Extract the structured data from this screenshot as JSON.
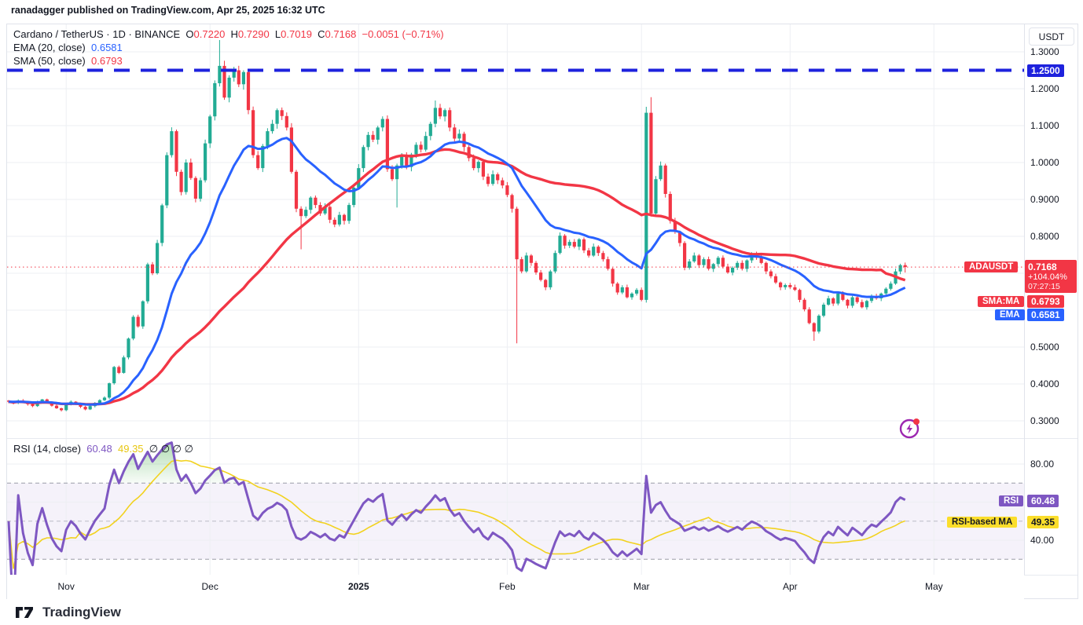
{
  "header": {
    "published_line": "ranadagger published on TradingView.com, Apr 25, 2025 16:32 UTC"
  },
  "legend": {
    "symbol": "Cardano / TetherUS · 1D · BINANCE",
    "o_label": "O",
    "o_value": "0.7220",
    "h_label": "H",
    "h_value": "0.7290",
    "l_label": "L",
    "l_value": "0.7019",
    "c_label": "C",
    "c_value": "0.7168",
    "change": "−0.0051 (−0.71%)",
    "ema_label": "EMA (20, close)",
    "ema_value": "0.6581",
    "sma_label": "SMA (50, close)",
    "sma_value": "0.6793"
  },
  "rsi_legend": {
    "label": "RSI (14, close)",
    "rsi_value": "60.48",
    "ma_value": "49.35",
    "empties": "∅ ∅ ∅ ∅"
  },
  "price_axis": {
    "currency": "USDT",
    "labels": [
      {
        "text": "1.3000",
        "price": 1.3
      },
      {
        "text": "1.2000",
        "price": 1.2
      },
      {
        "text": "1.1000",
        "price": 1.1
      },
      {
        "text": "1.0000",
        "price": 1.0
      },
      {
        "text": "0.9000",
        "price": 0.9
      },
      {
        "text": "0.8000",
        "price": 0.8
      },
      {
        "text": "0.5000",
        "price": 0.5
      },
      {
        "text": "0.4000",
        "price": 0.4
      },
      {
        "text": "0.3000",
        "price": 0.3
      }
    ],
    "level_badge": {
      "text": "1.2500",
      "price": 1.25,
      "color": "#1e22dd"
    },
    "last_badge": {
      "symbol": "ADAUSDT",
      "price": "0.7168",
      "change_pct": "+104.04%",
      "countdown": "07:27:15",
      "color": "#f23645"
    },
    "sma_badge": {
      "label": "SMA:MA",
      "value": "0.6793",
      "color": "#f23645"
    },
    "ema_badge": {
      "label": "EMA",
      "value": "0.6581",
      "color": "#2962ff"
    }
  },
  "rsi_axis": {
    "labels": [
      {
        "text": "80.00",
        "value": 80
      },
      {
        "text": "40.00",
        "value": 40
      }
    ],
    "rsi_badge": {
      "label": "RSI",
      "value": "60.48",
      "color": "#7e57c2",
      "rsi": 60.48
    },
    "ma_badge": {
      "label": "RSI-based MA",
      "value": "49.35",
      "color": "#fbde2b",
      "text_color": "#131722",
      "rsi": 49.35
    }
  },
  "time_axis": {
    "labels": [
      {
        "text": "Nov",
        "index": 12
      },
      {
        "text": "Dec",
        "index": 42
      },
      {
        "text": "2025",
        "index": 73,
        "bold": true
      },
      {
        "text": "Feb",
        "index": 104
      },
      {
        "text": "Mar",
        "index": 132
      },
      {
        "text": "Apr",
        "index": 163
      },
      {
        "text": "May",
        "index": 193
      }
    ]
  },
  "footer": {
    "brand": "TradingView"
  },
  "chart_data": {
    "type": "candlestick",
    "symbol": "ADAUSDT",
    "exchange": "BINANCE",
    "interval": "1D",
    "title": "Cardano / TetherUS daily with EMA(20), SMA(50) and RSI(14)",
    "first_open": 0.355,
    "closes": [
      0.352,
      0.348,
      0.355,
      0.35,
      0.345,
      0.34,
      0.351,
      0.358,
      0.35,
      0.341,
      0.334,
      0.329,
      0.344,
      0.352,
      0.347,
      0.338,
      0.331,
      0.34,
      0.349,
      0.356,
      0.363,
      0.402,
      0.446,
      0.43,
      0.472,
      0.523,
      0.582,
      0.556,
      0.624,
      0.724,
      0.7,
      0.782,
      0.884,
      1.02,
      1.085,
      0.975,
      0.92,
      1.0,
      0.958,
      0.902,
      0.952,
      1.052,
      1.125,
      1.215,
      1.262,
      1.176,
      1.23,
      1.25,
      1.212,
      1.245,
      1.142,
      1.02,
      0.985,
      1.045,
      1.085,
      1.105,
      1.142,
      1.126,
      1.095,
      0.975,
      0.875,
      0.855,
      0.872,
      0.905,
      0.885,
      0.862,
      0.88,
      0.845,
      0.832,
      0.858,
      0.842,
      0.885,
      0.932,
      0.985,
      1.042,
      1.075,
      1.062,
      1.095,
      1.118,
      0.982,
      0.955,
      0.992,
      1.018,
      0.988,
      1.022,
      1.048,
      1.035,
      1.072,
      1.105,
      1.148,
      1.125,
      1.142,
      1.095,
      1.065,
      1.078,
      1.042,
      1.012,
      0.985,
      1.002,
      0.962,
      0.942,
      0.968,
      0.952,
      0.938,
      0.912,
      0.875,
      0.738,
      0.705,
      0.748,
      0.728,
      0.702,
      0.682,
      0.662,
      0.705,
      0.755,
      0.802,
      0.775,
      0.785,
      0.772,
      0.792,
      0.762,
      0.748,
      0.772,
      0.755,
      0.738,
      0.712,
      0.672,
      0.648,
      0.662,
      0.635,
      0.645,
      0.655,
      0.628,
      1.135,
      0.862,
      0.955,
      0.992,
      0.915,
      0.842,
      0.812,
      0.782,
      0.715,
      0.732,
      0.748,
      0.722,
      0.738,
      0.712,
      0.725,
      0.742,
      0.718,
      0.702,
      0.715,
      0.728,
      0.712,
      0.735,
      0.752,
      0.742,
      0.728,
      0.705,
      0.692,
      0.675,
      0.662,
      0.668,
      0.662,
      0.655,
      0.628,
      0.602,
      0.565,
      0.542,
      0.585,
      0.615,
      0.632,
      0.618,
      0.645,
      0.628,
      0.612,
      0.635,
      0.622,
      0.608,
      0.625,
      0.638,
      0.632,
      0.645,
      0.658,
      0.672,
      0.705,
      0.722,
      0.7168
    ],
    "wick_overrides": {
      "44": {
        "h": 1.332
      },
      "61": {
        "l": 0.765
      },
      "81": {
        "l": 0.878
      },
      "89": {
        "h": 1.168
      },
      "106": {
        "l": 0.51
      },
      "133": {
        "h": 1.151
      },
      "134": {
        "h": 1.177
      },
      "168": {
        "l": 0.517
      },
      "187": {
        "o": 0.722,
        "h": 0.729,
        "l": 0.7019,
        "c": 0.7168
      }
    },
    "overlays": [
      {
        "name": "EMA",
        "period": 20,
        "color": "#2962ff",
        "last_value": 0.6581
      },
      {
        "name": "SMA",
        "period": 50,
        "color": "#f23645",
        "last_value": 0.6793
      }
    ],
    "hlines": [
      {
        "price": 1.25,
        "style": "dashed",
        "color": "#1e22dd",
        "width": 4
      },
      {
        "price": 0.7168,
        "style": "dotted",
        "color": "#f23645",
        "width": 1
      }
    ],
    "price_gridlines": [
      0.3,
      0.4,
      0.5,
      0.6,
      0.7,
      0.8,
      0.9,
      1.0,
      1.1,
      1.2,
      1.3
    ],
    "rsi": {
      "period": 14,
      "ma_period": 14,
      "last_value": 60.48,
      "ma_last_value": 49.35,
      "band": [
        30,
        70
      ],
      "dashed_levels": [
        30,
        50,
        70
      ],
      "gridlines": [
        40,
        60,
        80
      ],
      "line_color": "#7e57c2",
      "ma_color": "#f2d21f",
      "band_color": "#7e57c2",
      "over70_fill": "#4caf50"
    },
    "colors": {
      "up": "#22ab94",
      "down": "#f23645",
      "grid": "#edeff3"
    }
  }
}
